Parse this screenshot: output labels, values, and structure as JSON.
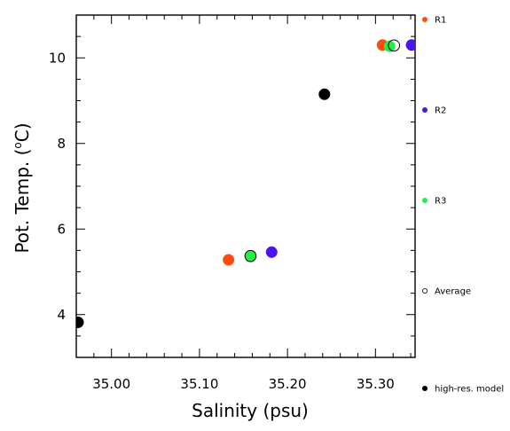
{
  "chart_data": {
    "type": "scatter",
    "xlabel": "Salinity (psu)",
    "ylabel_main": "Pot. Temp. (",
    "ylabel_sup": "o",
    "ylabel_unit": "C)",
    "xlim": [
      34.96,
      35.345
    ],
    "ylim": [
      3.0,
      11.0
    ],
    "x_ticks": [
      {
        "value": 35.0,
        "label": "35.00"
      },
      {
        "value": 35.1,
        "label": "35.10"
      },
      {
        "value": 35.2,
        "label": "35.20"
      },
      {
        "value": 35.3,
        "label": "35.30"
      }
    ],
    "y_ticks": [
      {
        "value": 4,
        "label": "4"
      },
      {
        "value": 6,
        "label": "6"
      },
      {
        "value": 8,
        "label": "8"
      },
      {
        "value": 10,
        "label": "10"
      }
    ],
    "legend_placement": "right",
    "series": [
      {
        "name": "R1",
        "color": "#ff4a12",
        "filled": true,
        "points": [
          [
            35.133,
            5.28
          ],
          [
            35.308,
            10.3
          ]
        ]
      },
      {
        "name": "R2",
        "color": "#4a14f0",
        "filled": true,
        "points": [
          [
            35.182,
            5.46
          ],
          [
            35.341,
            10.3
          ]
        ]
      },
      {
        "name": "R3",
        "color": "#22ee44",
        "filled": true,
        "points": [
          [
            35.158,
            5.37
          ],
          [
            35.316,
            10.27
          ]
        ]
      },
      {
        "name": "Average",
        "color": "#000000",
        "filled": false,
        "points": [
          [
            35.158,
            5.37
          ],
          [
            35.321,
            10.29
          ]
        ]
      },
      {
        "name": "high-res. model",
        "color": "#000000",
        "filled": true,
        "points": [
          [
            34.962,
            3.82
          ],
          [
            35.242,
            9.15
          ]
        ]
      }
    ]
  }
}
